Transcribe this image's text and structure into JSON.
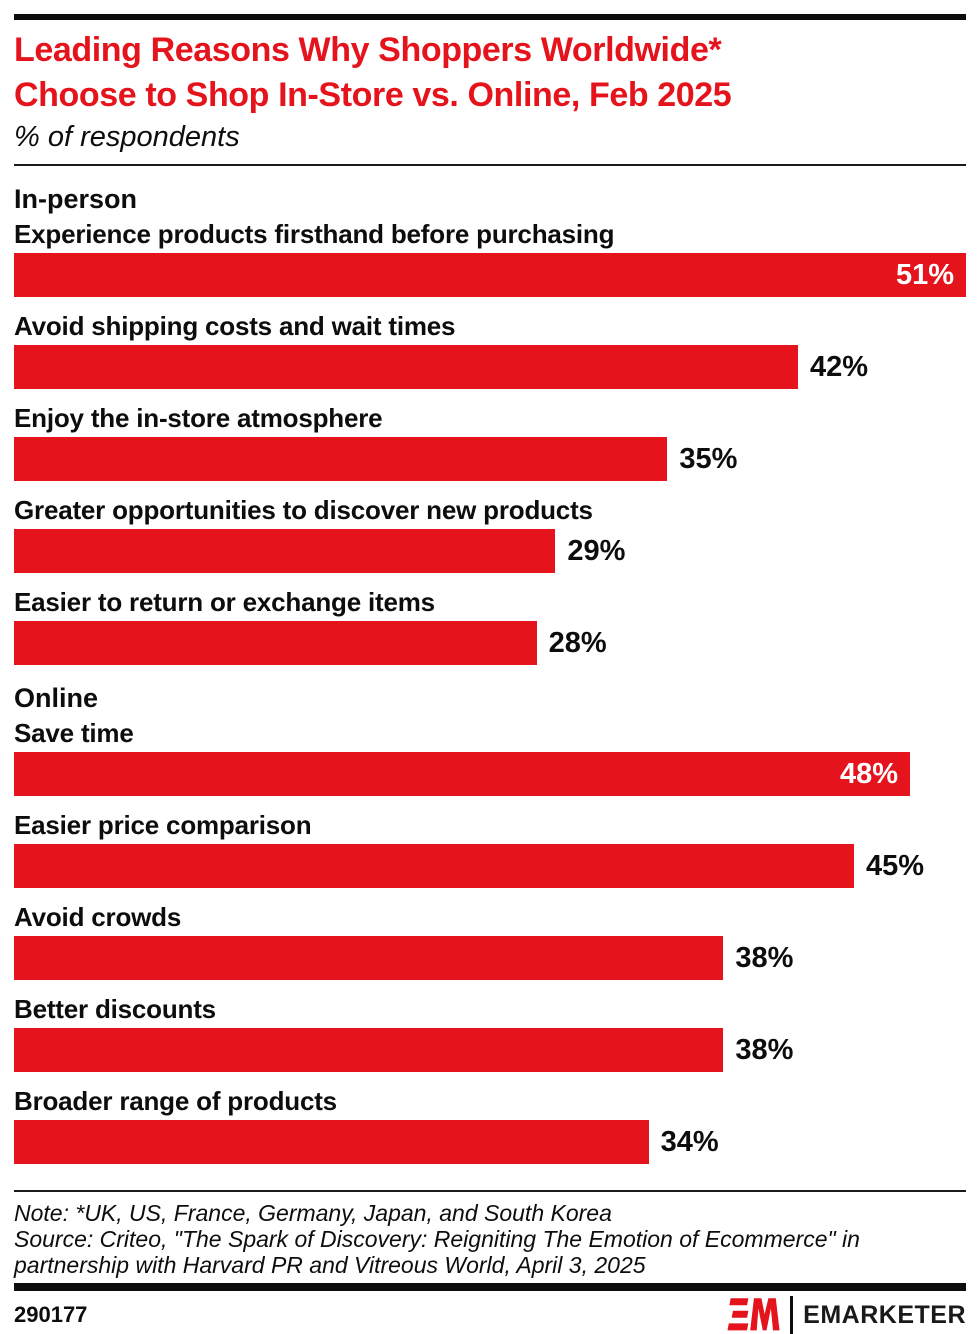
{
  "header": {
    "title_line1": "Leading Reasons Why Shoppers Worldwide*",
    "title_line2": "Choose to Shop In-Store vs. Online, Feb 2025",
    "subtitle": "% of respondents"
  },
  "chart_data": {
    "type": "bar",
    "orientation": "horizontal",
    "unit": "% of respondents",
    "axis_max": 51,
    "bar_color": "#e5141c",
    "groups": [
      {
        "label": "In-person",
        "items": [
          {
            "label": "Experience products firsthand before purchasing",
            "value": 51,
            "display": "51%",
            "value_inside": true
          },
          {
            "label": "Avoid shipping costs and wait times",
            "value": 42,
            "display": "42%",
            "value_inside": false
          },
          {
            "label": "Enjoy the in-store atmosphere",
            "value": 35,
            "display": "35%",
            "value_inside": false
          },
          {
            "label": "Greater opportunities to discover new products",
            "value": 29,
            "display": "29%",
            "value_inside": false
          },
          {
            "label": "Easier to return or exchange items",
            "value": 28,
            "display": "28%",
            "value_inside": false
          }
        ]
      },
      {
        "label": "Online",
        "items": [
          {
            "label": "Save time",
            "value": 48,
            "display": "48%",
            "value_inside": true
          },
          {
            "label": "Easier price comparison",
            "value": 45,
            "display": "45%",
            "value_inside": false
          },
          {
            "label": "Avoid crowds",
            "value": 38,
            "display": "38%",
            "value_inside": false
          },
          {
            "label": "Better discounts",
            "value": 38,
            "display": "38%",
            "value_inside": false
          },
          {
            "label": "Broader range of products",
            "value": 34,
            "display": "34%",
            "value_inside": false
          }
        ]
      }
    ]
  },
  "footer": {
    "note": "Note: *UK, US, France, Germany, Japan, and South Korea",
    "source_line1": "Source: Criteo, \"The Spark of Discovery: Reigniting The Emotion of Ecommerce\" in",
    "source_line2": "partnership with Harvard PR and Vitreous World, April 3, 2025",
    "chart_id": "290177",
    "brand": "EMARKETER"
  }
}
